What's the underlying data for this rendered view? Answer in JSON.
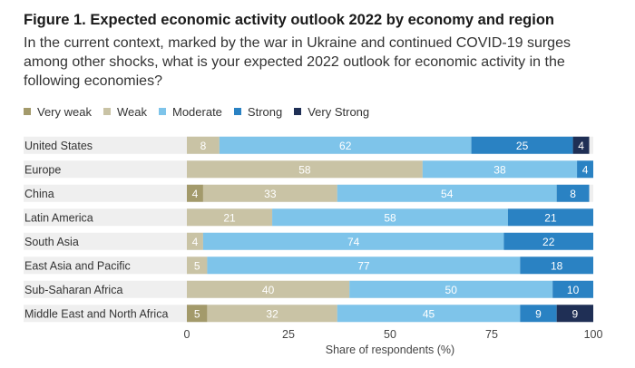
{
  "header": {
    "title": "Figure 1. Expected economic activity outlook 2022 by economy and region",
    "subtitle": "In the current context, marked by the war in Ukraine and continued COVID-19 surges among other shocks, what is your expected 2022 outlook for economic activity in the following economies?"
  },
  "colors": {
    "very_weak": "#a39a6b",
    "weak": "#c9c3a5",
    "moderate": "#7ec4ea",
    "strong": "#2a82c3",
    "very_strong": "#1f2f55",
    "row_band": "#efefef"
  },
  "chart_data": {
    "type": "bar",
    "orientation": "horizontal",
    "stacked": true,
    "categories": [
      "United States",
      "Europe",
      "China",
      "Latin America",
      "South Asia",
      "East Asia and Pacific",
      "Sub-Saharan Africa",
      "Middle East and North Africa"
    ],
    "series": [
      {
        "name": "Very weak",
        "values": [
          0,
          0,
          4,
          0,
          0,
          0,
          0,
          5
        ]
      },
      {
        "name": "Weak",
        "values": [
          8,
          58,
          33,
          21,
          4,
          5,
          40,
          32
        ]
      },
      {
        "name": "Moderate",
        "values": [
          62,
          38,
          54,
          58,
          74,
          77,
          50,
          45
        ]
      },
      {
        "name": "Strong",
        "values": [
          25,
          4,
          8,
          21,
          22,
          18,
          10,
          9
        ]
      },
      {
        "name": "Very Strong",
        "values": [
          4,
          0,
          0,
          0,
          0,
          0,
          0,
          9
        ]
      }
    ],
    "xlabel": "Share of respondents (%)",
    "xlim": [
      0,
      100
    ],
    "xticks": [
      0,
      25,
      50,
      75,
      100
    ],
    "legend_position": "top-left",
    "grid": false
  }
}
